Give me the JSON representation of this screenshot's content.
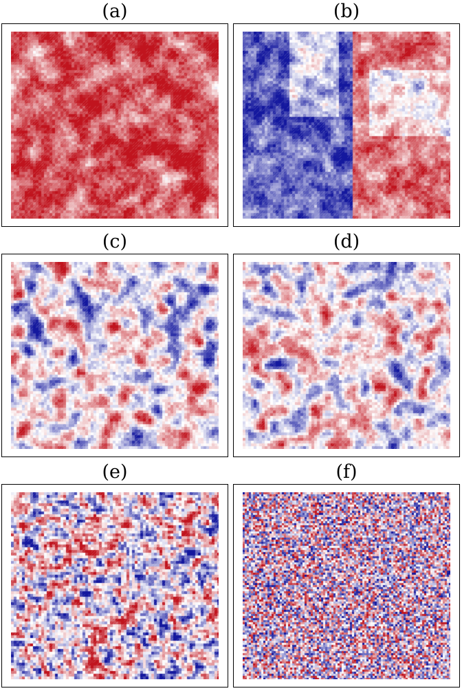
{
  "colors": {
    "positive": "#c0141e",
    "negative": "#14189e",
    "neutral": "#ffffff",
    "frame": "#000000"
  },
  "panels": [
    {
      "label": "(a)",
      "scheme": "mostly-red-ordered"
    },
    {
      "label": "(b)",
      "scheme": "two-large-domains"
    },
    {
      "label": "(c)",
      "scheme": "medium-domains"
    },
    {
      "label": "(d)",
      "scheme": "medium-domains"
    },
    {
      "label": "(e)",
      "scheme": "small-domains"
    },
    {
      "label": "(f)",
      "scheme": "disordered"
    }
  ]
}
